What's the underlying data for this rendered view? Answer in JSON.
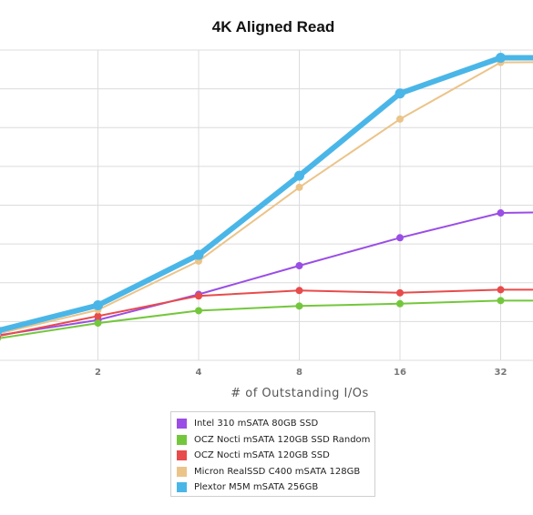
{
  "chart_data": {
    "type": "line",
    "title": "4K Aligned Read",
    "xlabel": "# of Outstanding I/Os",
    "ylabel": "",
    "x_scale": "log2",
    "x_tick_labels": [
      "2",
      "4",
      "8",
      "16",
      "32"
    ],
    "x_visible_range": [
      1,
      64
    ],
    "ylim": [
      0,
      40000
    ],
    "grid": true,
    "legend_placement": "bottom",
    "series": [
      {
        "name": "Intel 310 mSATA 80GB SSD",
        "color": "#9a4ee5",
        "x": [
          1,
          2,
          4,
          8,
          16,
          32,
          64
        ],
        "values": [
          3200,
          5200,
          8500,
          12200,
          15800,
          19000,
          19200
        ]
      },
      {
        "name": "OCZ Nocti mSATA 120GB SSD Random",
        "color": "#74c73c",
        "x": [
          1,
          2,
          4,
          8,
          16,
          32,
          64
        ],
        "values": [
          2800,
          4800,
          6400,
          7000,
          7300,
          7700,
          7700
        ]
      },
      {
        "name": "OCZ Nocti mSATA 120GB SSD",
        "color": "#e84b4b",
        "x": [
          1,
          2,
          4,
          8,
          16,
          32,
          64
        ],
        "values": [
          3100,
          5700,
          8300,
          9000,
          8700,
          9100,
          9100
        ]
      },
      {
        "name": "Micron RealSSD C400 mSATA 128GB",
        "color": "#ebc48a",
        "x": [
          1,
          2,
          4,
          8,
          16,
          32,
          64
        ],
        "values": [
          3400,
          6500,
          12800,
          22300,
          31100,
          38400,
          38500
        ]
      },
      {
        "name": "Plextor M5M mSATA 256GB",
        "color": "#4ab6e8",
        "x": [
          1,
          2,
          4,
          8,
          16,
          32,
          64
        ],
        "values": [
          3800,
          7100,
          13600,
          23800,
          34400,
          39000,
          39000
        ]
      }
    ]
  }
}
